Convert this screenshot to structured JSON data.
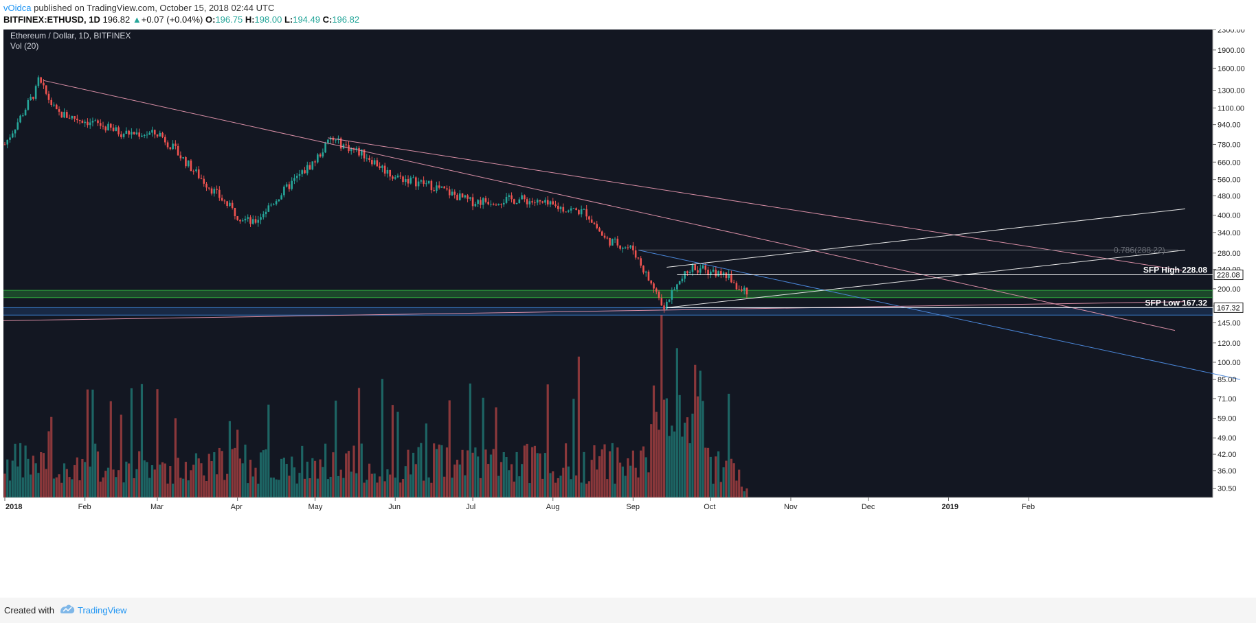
{
  "header": {
    "user": "vOidca",
    "published_text": "published on TradingView.com, October 15, 2018 02:44 UTC",
    "symbol": "BITFINEX:ETHUSD, 1D",
    "last": "196.82",
    "change": "+0.07 (+0.04%)",
    "o_label": "O:",
    "o_value": "196.75",
    "h_label": "H:",
    "h_value": "198.00",
    "l_label": "L:",
    "l_value": "194.49",
    "c_label": "C:",
    "c_value": "196.82"
  },
  "chart_data": {
    "type": "candlestick",
    "title": "Ethereum / Dollar, 1D, BITFINEX",
    "indicator": "Vol (20)",
    "y_scale": "log",
    "ylim": [
      28.5,
      2350
    ],
    "y_ticks": [
      2300,
      1900,
      1600,
      1300,
      1100,
      940,
      780,
      660,
      560,
      480,
      400,
      340,
      280,
      240,
      200,
      170,
      145,
      120,
      100,
      85,
      71,
      59,
      49,
      42,
      36,
      30.5
    ],
    "y_tick_labels": [
      "2300.00",
      "1900.00",
      "1600.00",
      "1300.00",
      "1100.00",
      "940.00",
      "780.00",
      "660.00",
      "560.00",
      "480.00",
      "400.00",
      "340.00",
      "280.00",
      "240.00",
      "200.00",
      "170.00",
      "145.00",
      "120.00",
      "100.00",
      "85.00",
      "71.00",
      "59.00",
      "49.00",
      "42.00",
      "36.00",
      "30.50"
    ],
    "x_labels": [
      "2018",
      "Feb",
      "Mar",
      "Apr",
      "May",
      "Jun",
      "Jul",
      "Aug",
      "Sep",
      "Oct",
      "Nov",
      "Dec",
      "2019",
      "Feb"
    ],
    "monthly_closes": [
      {
        "month": "Jan 2018",
        "close": 1150
      },
      {
        "month": "Feb 2018",
        "close": 860
      },
      {
        "month": "Mar 2018",
        "close": 395
      },
      {
        "month": "Apr 2018",
        "close": 670
      },
      {
        "month": "May 2018",
        "close": 575
      },
      {
        "month": "Jun 2018",
        "close": 455
      },
      {
        "month": "Jul 2018",
        "close": 435
      },
      {
        "month": "Aug 2018",
        "close": 283
      },
      {
        "month": "Sep 2018",
        "close": 232
      },
      {
        "month": "Oct 15 2018",
        "close": 196.82
      }
    ],
    "key_points": [
      {
        "label": "Jan high",
        "date": "2018-01-13",
        "value": 1425
      },
      {
        "label": "Apr low",
        "date": "2018-04-06",
        "value": 365
      },
      {
        "label": "May high",
        "date": "2018-05-06",
        "value": 830
      },
      {
        "label": "Sep low",
        "date": "2018-09-12",
        "value": 167.32
      },
      {
        "label": "Sep high",
        "date": "2018-09-24",
        "value": 255
      }
    ],
    "annotations": [
      {
        "text": "0.786(288.22)",
        "value": 288.22
      },
      {
        "text": "SFP High 228.08",
        "value": 228.08
      },
      {
        "text": "SFP Low 167.32",
        "value": 167.32
      }
    ],
    "price_tags": [
      "228.08",
      "167.32"
    ],
    "zones": [
      {
        "name": "green support zone",
        "low": 184,
        "high": 197
      },
      {
        "name": "blue support zone",
        "low": 156,
        "high": 167.32
      }
    ],
    "volume_label": "Vol (20)"
  },
  "footer": {
    "created_with": "Created with",
    "brand": "TradingView"
  }
}
